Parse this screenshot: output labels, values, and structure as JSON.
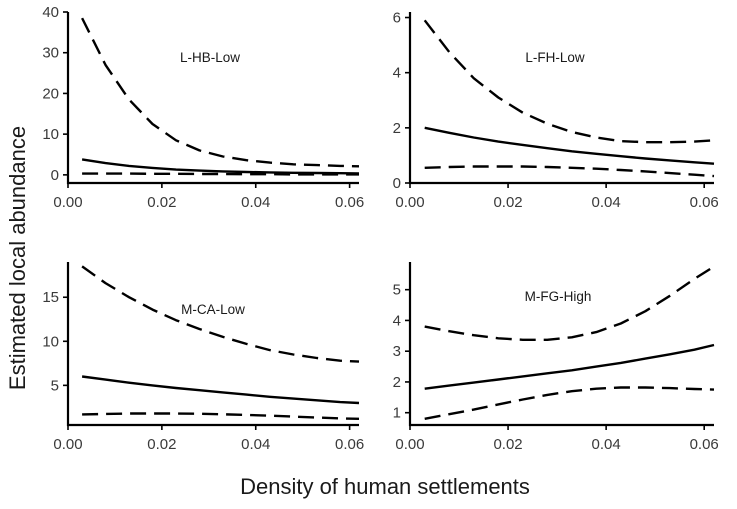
{
  "figure": {
    "xlabel": "Density of human settlements",
    "ylabel": "Estimated local abundance"
  },
  "chart_data": [
    {
      "type": "line",
      "title": "L-HB-Low",
      "xlim": [
        0,
        0.062
      ],
      "ylim": [
        -2,
        40
      ],
      "x_ticks": [
        0.0,
        0.02,
        0.04,
        0.06
      ],
      "x_tick_labels": [
        "0.00",
        "0.02",
        "0.04",
        "0.06"
      ],
      "y_ticks": [
        0,
        10,
        20,
        30,
        40
      ],
      "y_tick_labels": [
        "0",
        "10",
        "20",
        "30",
        "40"
      ],
      "x": [
        0.003,
        0.008,
        0.013,
        0.018,
        0.023,
        0.028,
        0.033,
        0.038,
        0.043,
        0.048,
        0.053,
        0.058,
        0.062
      ],
      "series": [
        {
          "name": "upper",
          "style": "dashed",
          "values": [
            38.5,
            27.0,
            18.5,
            12.5,
            8.5,
            6.0,
            4.5,
            3.6,
            3.0,
            2.6,
            2.4,
            2.2,
            2.1
          ]
        },
        {
          "name": "estimate",
          "style": "solid",
          "values": [
            3.8,
            2.9,
            2.2,
            1.7,
            1.3,
            1.05,
            0.85,
            0.7,
            0.6,
            0.5,
            0.45,
            0.4,
            0.35
          ]
        },
        {
          "name": "lower",
          "style": "dashed",
          "values": [
            0.3,
            0.3,
            0.3,
            0.25,
            0.25,
            0.2,
            0.2,
            0.15,
            0.15,
            0.1,
            0.1,
            0.1,
            0.1
          ]
        }
      ]
    },
    {
      "type": "line",
      "title": "L-FH-Low",
      "xlim": [
        0,
        0.062
      ],
      "ylim": [
        0,
        6.2
      ],
      "x_ticks": [
        0.0,
        0.02,
        0.04,
        0.06
      ],
      "x_tick_labels": [
        "0.00",
        "0.02",
        "0.04",
        "0.06"
      ],
      "y_ticks": [
        0,
        2,
        4,
        6
      ],
      "y_tick_labels": [
        "0",
        "2",
        "4",
        "6"
      ],
      "x": [
        0.003,
        0.008,
        0.013,
        0.018,
        0.023,
        0.028,
        0.033,
        0.038,
        0.043,
        0.048,
        0.053,
        0.058,
        0.062
      ],
      "series": [
        {
          "name": "upper",
          "style": "dashed",
          "values": [
            5.9,
            4.75,
            3.8,
            3.1,
            2.55,
            2.15,
            1.85,
            1.65,
            1.52,
            1.48,
            1.48,
            1.5,
            1.55
          ]
        },
        {
          "name": "estimate",
          "style": "solid",
          "values": [
            2.0,
            1.82,
            1.65,
            1.5,
            1.38,
            1.26,
            1.15,
            1.06,
            0.97,
            0.89,
            0.82,
            0.75,
            0.7
          ]
        },
        {
          "name": "lower",
          "style": "dashed",
          "values": [
            0.55,
            0.58,
            0.6,
            0.6,
            0.6,
            0.58,
            0.55,
            0.52,
            0.47,
            0.42,
            0.36,
            0.3,
            0.25
          ]
        }
      ]
    },
    {
      "type": "line",
      "title": "M-CA-Low",
      "xlim": [
        0,
        0.062
      ],
      "ylim": [
        0.5,
        19
      ],
      "x_ticks": [
        0.0,
        0.02,
        0.04,
        0.06
      ],
      "x_tick_labels": [
        "0.00",
        "0.02",
        "0.04",
        "0.06"
      ],
      "y_ticks": [
        5,
        10,
        15
      ],
      "y_tick_labels": [
        "5",
        "10",
        "15"
      ],
      "x": [
        0.003,
        0.008,
        0.013,
        0.018,
        0.023,
        0.028,
        0.033,
        0.038,
        0.043,
        0.048,
        0.053,
        0.058,
        0.062
      ],
      "series": [
        {
          "name": "upper",
          "style": "dashed",
          "values": [
            18.5,
            16.6,
            15.0,
            13.6,
            12.4,
            11.4,
            10.5,
            9.7,
            9.0,
            8.5,
            8.1,
            7.8,
            7.7
          ]
        },
        {
          "name": "estimate",
          "style": "solid",
          "values": [
            6.0,
            5.65,
            5.3,
            5.0,
            4.7,
            4.45,
            4.2,
            3.95,
            3.7,
            3.5,
            3.3,
            3.1,
            3.0
          ]
        },
        {
          "name": "lower",
          "style": "dashed",
          "values": [
            1.7,
            1.75,
            1.8,
            1.8,
            1.8,
            1.78,
            1.72,
            1.65,
            1.55,
            1.45,
            1.35,
            1.25,
            1.2
          ]
        }
      ]
    },
    {
      "type": "line",
      "title": "M-FG-High",
      "xlim": [
        0,
        0.062
      ],
      "ylim": [
        0.6,
        5.9
      ],
      "x_ticks": [
        0.0,
        0.02,
        0.04,
        0.06
      ],
      "x_tick_labels": [
        "0.00",
        "0.02",
        "0.04",
        "0.06"
      ],
      "y_ticks": [
        1,
        2,
        3,
        4,
        5
      ],
      "y_tick_labels": [
        "1",
        "2",
        "3",
        "4",
        "5"
      ],
      "x": [
        0.003,
        0.008,
        0.013,
        0.018,
        0.023,
        0.028,
        0.033,
        0.038,
        0.043,
        0.048,
        0.053,
        0.058,
        0.062
      ],
      "series": [
        {
          "name": "upper",
          "style": "dashed",
          "values": [
            3.8,
            3.65,
            3.52,
            3.42,
            3.37,
            3.37,
            3.45,
            3.62,
            3.9,
            4.3,
            4.8,
            5.35,
            5.75
          ]
        },
        {
          "name": "estimate",
          "style": "solid",
          "values": [
            1.78,
            1.88,
            1.98,
            2.08,
            2.18,
            2.28,
            2.38,
            2.5,
            2.62,
            2.76,
            2.9,
            3.05,
            3.2
          ]
        },
        {
          "name": "lower",
          "style": "dashed",
          "values": [
            0.8,
            0.95,
            1.1,
            1.27,
            1.43,
            1.58,
            1.7,
            1.78,
            1.82,
            1.82,
            1.8,
            1.77,
            1.75
          ]
        }
      ]
    }
  ]
}
